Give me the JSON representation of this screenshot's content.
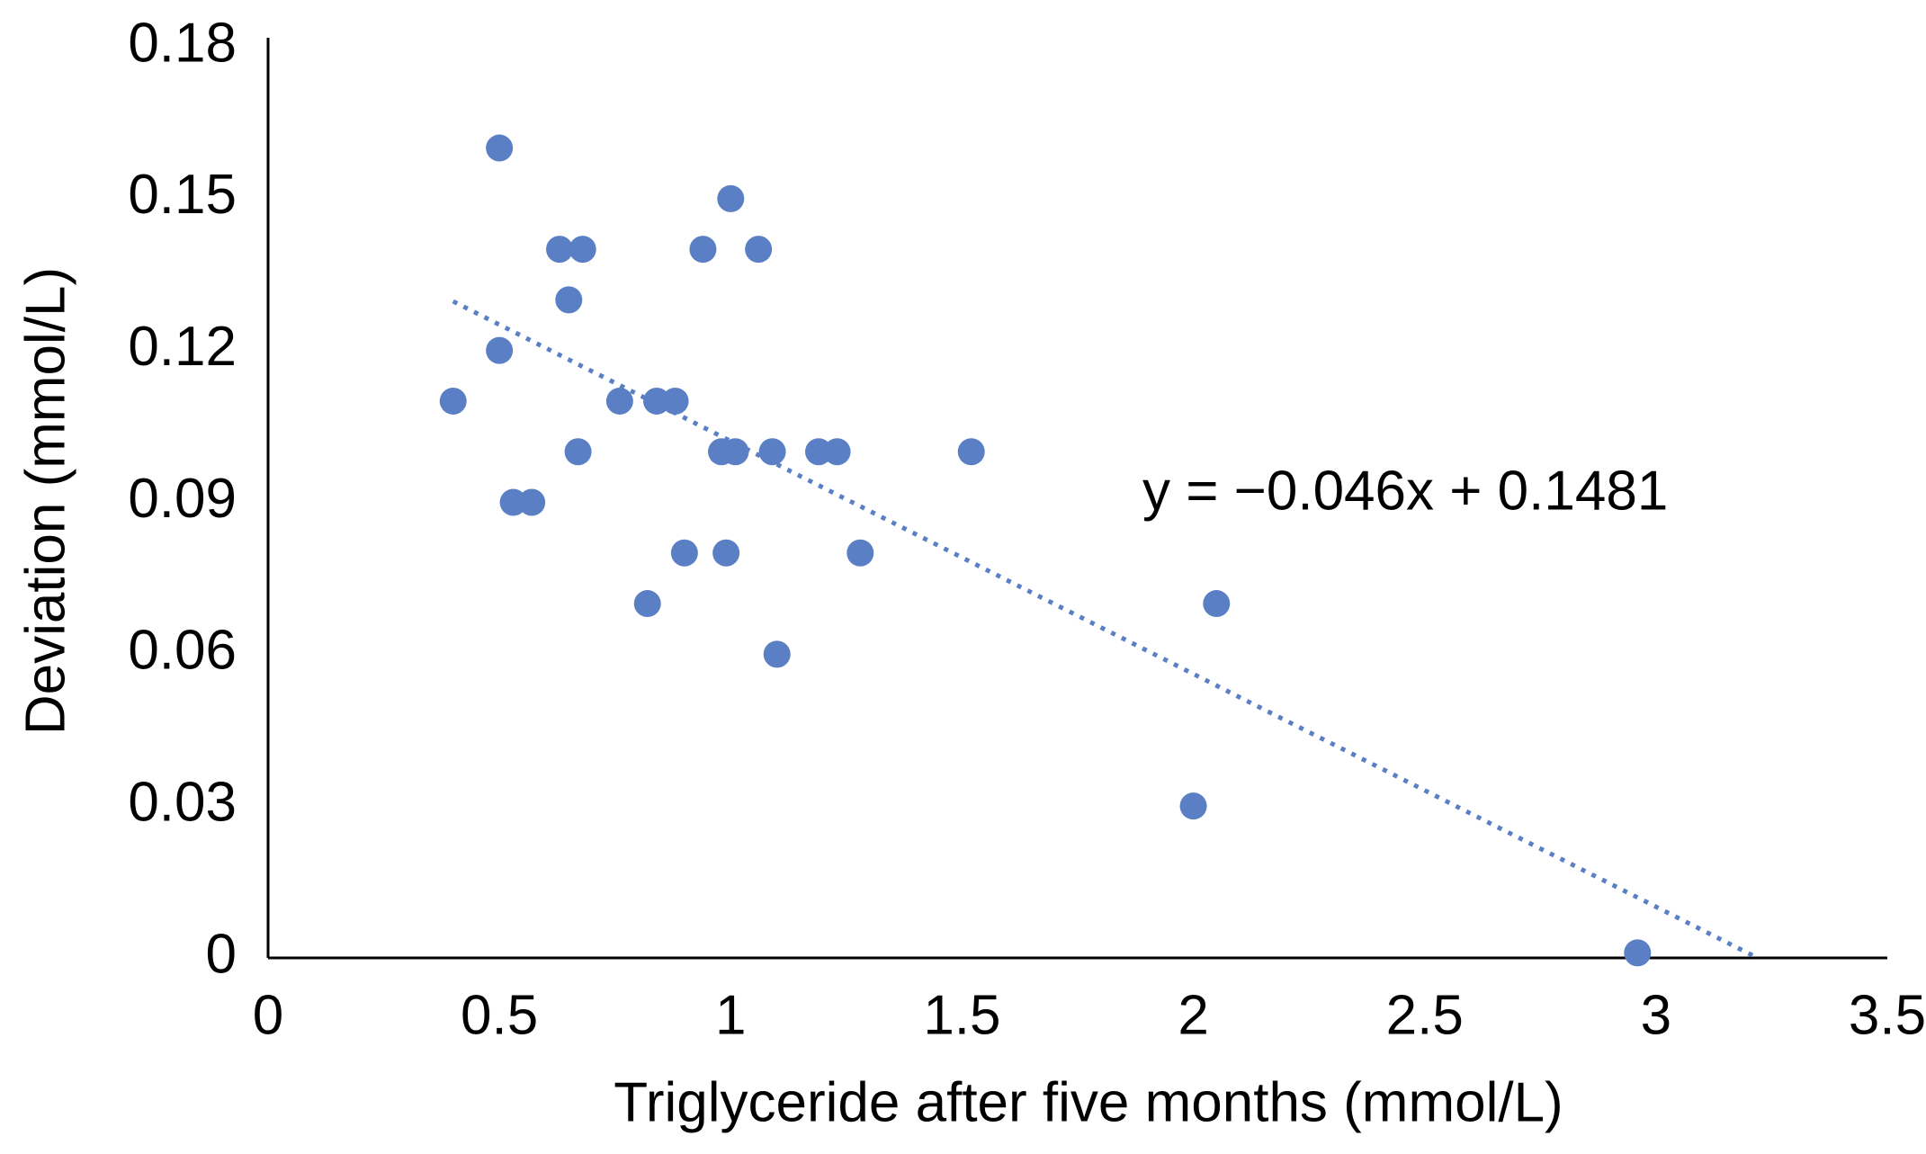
{
  "chart_data": {
    "type": "scatter",
    "x_label": "Triglyceride after five months (mmol/L)",
    "y_label": "Deviation (mmol/L)",
    "color": "#5b7fc4",
    "x": [
      0.4,
      0.5,
      0.5,
      0.53,
      0.57,
      0.63,
      0.68,
      0.65,
      0.67,
      0.76,
      0.82,
      0.84,
      0.88,
      0.9,
      0.94,
      1.0,
      0.98,
      1.01,
      0.99,
      1.06,
      1.09,
      1.1,
      1.19,
      1.23,
      1.28,
      1.52,
      2.0,
      2.05,
      2.96
    ],
    "values": [
      0.11,
      0.16,
      0.12,
      0.09,
      0.09,
      0.14,
      0.14,
      0.13,
      0.1,
      0.11,
      0.07,
      0.11,
      0.11,
      0.08,
      0.14,
      0.15,
      0.1,
      0.1,
      0.08,
      0.14,
      0.1,
      0.06,
      0.1,
      0.1,
      0.08,
      0.1,
      0.03,
      0.07,
      0.001
    ],
    "trendline": {
      "label": "y = −0.046x + 0.1481",
      "slope": -0.046,
      "intercept": 0.1481
    },
    "xlim": [
      0,
      3.5
    ],
    "xticks": [
      0,
      0.5,
      1,
      1.5,
      2,
      2.5,
      3,
      3.5
    ],
    "ylim": [
      0,
      0.18
    ],
    "yticks": [
      0,
      0.03,
      0.06,
      0.09,
      0.12,
      0.15,
      0.18
    ],
    "grid": false
  }
}
